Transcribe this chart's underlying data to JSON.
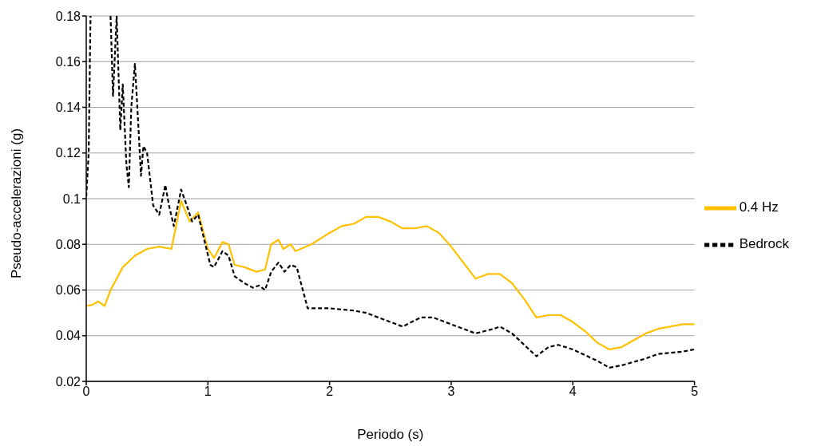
{
  "chart_data": {
    "type": "line",
    "xlabel": "Periodo (s)",
    "ylabel": "Pseudo-accelerazioni (g)",
    "xlim": [
      0,
      5
    ],
    "xticks": [
      0,
      1,
      2,
      3,
      4,
      5
    ],
    "ylim": [
      0.02,
      0.18
    ],
    "yticks": [
      0.02,
      0.04,
      0.06,
      0.08,
      0.1,
      0.12,
      0.14,
      0.16,
      0.18
    ],
    "grid": "y",
    "legend": "right",
    "marker": "none",
    "series": [
      {
        "name": "0.4 Hz",
        "color": "#ffc000",
        "line_style": "solid",
        "x": [
          0,
          0.05,
          0.1,
          0.15,
          0.2,
          0.3,
          0.4,
          0.5,
          0.6,
          0.7,
          0.78,
          0.85,
          0.92,
          1.0,
          1.05,
          1.12,
          1.17,
          1.22,
          1.3,
          1.4,
          1.47,
          1.52,
          1.58,
          1.62,
          1.68,
          1.72,
          1.85,
          2.0,
          2.1,
          2.2,
          2.3,
          2.4,
          2.5,
          2.6,
          2.7,
          2.8,
          2.9,
          3.0,
          3.1,
          3.2,
          3.3,
          3.4,
          3.5,
          3.6,
          3.7,
          3.8,
          3.9,
          4.0,
          4.1,
          4.2,
          4.3,
          4.4,
          4.5,
          4.6,
          4.7,
          4.8,
          4.9,
          5.0
        ],
        "values": [
          0.053,
          0.0535,
          0.055,
          0.053,
          0.06,
          0.07,
          0.075,
          0.078,
          0.079,
          0.078,
          0.099,
          0.09,
          0.094,
          0.078,
          0.074,
          0.081,
          0.08,
          0.071,
          0.07,
          0.068,
          0.069,
          0.08,
          0.082,
          0.078,
          0.08,
          0.077,
          0.08,
          0.085,
          0.088,
          0.089,
          0.092,
          0.092,
          0.09,
          0.087,
          0.087,
          0.088,
          0.085,
          0.079,
          0.072,
          0.065,
          0.067,
          0.067,
          0.063,
          0.056,
          0.048,
          0.049,
          0.049,
          0.046,
          0.042,
          0.037,
          0.034,
          0.035,
          0.038,
          0.041,
          0.043,
          0.044,
          0.045,
          0.045
        ]
      },
      {
        "name": "Bedrock",
        "color": "#000000",
        "line_style": "dashed",
        "x": [
          0,
          0.02,
          0.035,
          0.1,
          0.2,
          0.22,
          0.25,
          0.28,
          0.3,
          0.33,
          0.35,
          0.37,
          0.4,
          0.42,
          0.45,
          0.47,
          0.5,
          0.55,
          0.6,
          0.65,
          0.68,
          0.72,
          0.78,
          0.82,
          0.87,
          0.92,
          0.97,
          1.02,
          1.05,
          1.12,
          1.17,
          1.22,
          1.3,
          1.37,
          1.42,
          1.47,
          1.52,
          1.58,
          1.63,
          1.68,
          1.73,
          1.82,
          1.9,
          2.0,
          2.2,
          2.3,
          2.4,
          2.6,
          2.75,
          2.85,
          3.0,
          3.2,
          3.35,
          3.4,
          3.5,
          3.7,
          3.8,
          3.88,
          4.0,
          4.2,
          4.3,
          4.4,
          4.6,
          4.7,
          4.9,
          5.0
        ],
        "values": [
          0.101,
          0.12,
          0.18,
          null,
          0.18,
          0.145,
          0.18,
          0.13,
          0.15,
          0.115,
          0.105,
          0.14,
          0.159,
          0.14,
          0.11,
          0.123,
          0.12,
          0.097,
          0.093,
          0.106,
          0.097,
          0.088,
          0.104,
          0.098,
          0.09,
          0.093,
          0.082,
          0.071,
          0.07,
          0.077,
          0.075,
          0.066,
          0.063,
          0.061,
          0.062,
          0.06,
          0.068,
          0.072,
          0.068,
          0.071,
          0.07,
          0.052,
          0.052,
          0.052,
          0.051,
          0.05,
          0.048,
          0.044,
          0.048,
          0.048,
          0.045,
          0.041,
          0.043,
          0.044,
          0.041,
          0.031,
          0.035,
          0.036,
          0.034,
          0.029,
          0.026,
          0.027,
          0.03,
          0.032,
          0.033,
          0.034
        ]
      }
    ]
  }
}
